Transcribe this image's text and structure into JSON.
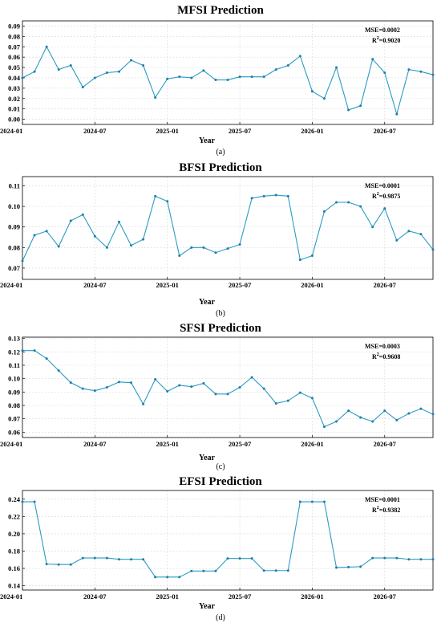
{
  "chart_data": [
    {
      "type": "line",
      "title": "MFSI Prediction",
      "xlabel": "Year",
      "caption": "(a)",
      "metrics": {
        "mse": "MSE=0.0002",
        "r2_prefix": "R",
        "r2_exp": "2",
        "r2_value": "=0.9020"
      },
      "x_ticks": [
        "2024-01",
        "2024-07",
        "2025-01",
        "2025-07",
        "2026-01",
        "2026-07"
      ],
      "y_ticks": [
        "0.00",
        "0.01",
        "0.02",
        "0.03",
        "0.04",
        "0.05",
        "0.06",
        "0.07",
        "0.08",
        "0.09"
      ],
      "ylim": [
        -0.005,
        0.095
      ],
      "grid": true,
      "values": [
        0.04,
        0.046,
        0.07,
        0.048,
        0.052,
        0.031,
        0.04,
        0.045,
        0.046,
        0.057,
        0.052,
        0.021,
        0.039,
        0.041,
        0.04,
        0.047,
        0.038,
        0.038,
        0.041,
        0.041,
        0.041,
        0.048,
        0.052,
        0.061,
        0.027,
        0.02,
        0.05,
        0.009,
        0.013,
        0.058,
        0.045,
        0.005,
        0.048,
        0.046,
        0.043
      ]
    },
    {
      "type": "line",
      "title": "BFSI Prediction",
      "xlabel": "Year",
      "caption": "(b)",
      "metrics": {
        "mse": "MSE=0.0001",
        "r2_prefix": "R",
        "r2_exp": "2",
        "r2_value": "=0.9875"
      },
      "x_ticks": [
        "2024-01",
        "2024-07",
        "2025-01",
        "2025-07",
        "2026-01",
        "2026-07"
      ],
      "y_ticks": [
        "0.07",
        "0.08",
        "0.09",
        "0.10",
        "0.11"
      ],
      "ylim": [
        0.0645,
        0.1145
      ],
      "grid": true,
      "values": [
        0.0735,
        0.086,
        0.088,
        0.0805,
        0.093,
        0.096,
        0.0855,
        0.08,
        0.0925,
        0.081,
        0.084,
        0.105,
        0.1025,
        0.076,
        0.08,
        0.08,
        0.0775,
        0.0795,
        0.0815,
        0.104,
        0.105,
        0.1055,
        0.105,
        0.074,
        0.076,
        0.0975,
        0.102,
        0.102,
        0.1,
        0.09,
        0.099,
        0.0835,
        0.088,
        0.0865,
        0.079
      ]
    },
    {
      "type": "line",
      "title": "SFSI Prediction",
      "xlabel": "Year",
      "caption": "(c)",
      "metrics": {
        "mse": "MSE=0.0003",
        "r2_prefix": "R",
        "r2_exp": "2",
        "r2_value": "=0.9608"
      },
      "x_ticks": [
        "2024-01",
        "2024-07",
        "2025-01",
        "2025-07",
        "2026-01",
        "2026-07"
      ],
      "y_ticks": [
        "0.06",
        "0.07",
        "0.08",
        "0.09",
        "0.10",
        "0.11",
        "0.12",
        "0.13"
      ],
      "ylim": [
        0.056,
        0.131
      ],
      "grid": true,
      "values": [
        0.121,
        0.121,
        0.115,
        0.106,
        0.097,
        0.0925,
        0.091,
        0.0935,
        0.0975,
        0.097,
        0.081,
        0.0995,
        0.0905,
        0.095,
        0.094,
        0.0965,
        0.0885,
        0.0885,
        0.0935,
        0.101,
        0.0925,
        0.0815,
        0.0835,
        0.0895,
        0.0855,
        0.064,
        0.068,
        0.076,
        0.071,
        0.068,
        0.076,
        0.069,
        0.074,
        0.0775,
        0.0735
      ]
    },
    {
      "type": "line",
      "title": "EFSI Prediction",
      "xlabel": "Year",
      "caption": "(d)",
      "metrics": {
        "mse": "MSE=0.0001",
        "r2_prefix": "R",
        "r2_exp": "2",
        "r2_value": "=0.9382"
      },
      "x_ticks": [
        "2024-01",
        "2024-07",
        "2025-01",
        "2025-07",
        "2026-01",
        "2026-07"
      ],
      "y_ticks": [
        "0.14",
        "0.16",
        "0.18",
        "0.20",
        "0.22",
        "0.24"
      ],
      "ylim": [
        0.135,
        0.25
      ],
      "grid": true,
      "values": [
        0.237,
        0.237,
        0.165,
        0.1645,
        0.1645,
        0.172,
        0.172,
        0.172,
        0.1705,
        0.1705,
        0.1705,
        0.15,
        0.15,
        0.15,
        0.157,
        0.157,
        0.157,
        0.1715,
        0.1715,
        0.1715,
        0.1575,
        0.1575,
        0.1575,
        0.237,
        0.237,
        0.237,
        0.161,
        0.1615,
        0.162,
        0.172,
        0.172,
        0.172,
        0.1705,
        0.1705,
        0.1705
      ]
    }
  ]
}
